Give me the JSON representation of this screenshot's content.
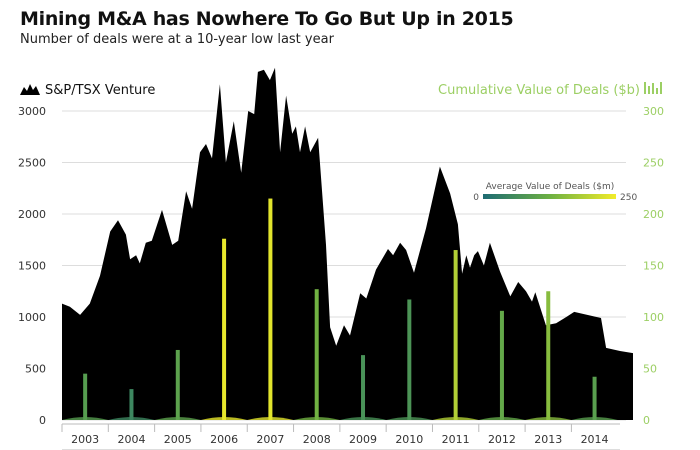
{
  "title": "Mining M&A has Nowhere To Go But Up in 2015",
  "subtitle": "Number of deals were at a 10-year low last year",
  "chart_data": {
    "type": "area+bar",
    "left_series": {
      "name": "S&P/TSX Venture",
      "type": "area",
      "color": "#000000",
      "ylim": [
        0,
        3000
      ],
      "yticks": [
        "0",
        "500",
        "1000",
        "1500",
        "2000",
        "2500",
        "3000"
      ],
      "points": [
        [
          2003.0,
          1130
        ],
        [
          2003.17,
          1100
        ],
        [
          2003.39,
          1020
        ],
        [
          2003.6,
          1130
        ],
        [
          2003.82,
          1400
        ],
        [
          2004.04,
          1830
        ],
        [
          2004.21,
          1940
        ],
        [
          2004.38,
          1800
        ],
        [
          2004.47,
          1560
        ],
        [
          2004.6,
          1600
        ],
        [
          2004.68,
          1520
        ],
        [
          2004.81,
          1720
        ],
        [
          2004.94,
          1740
        ],
        [
          2005.16,
          2040
        ],
        [
          2005.38,
          1700
        ],
        [
          2005.51,
          1740
        ],
        [
          2005.68,
          2220
        ],
        [
          2005.81,
          2050
        ],
        [
          2005.98,
          2600
        ],
        [
          2006.11,
          2680
        ],
        [
          2006.24,
          2540
        ],
        [
          2006.41,
          3260
        ],
        [
          2006.54,
          2500
        ],
        [
          2006.71,
          2900
        ],
        [
          2006.87,
          2400
        ],
        [
          2007.02,
          3000
        ],
        [
          2007.15,
          2970
        ],
        [
          2007.23,
          3380
        ],
        [
          2007.36,
          3400
        ],
        [
          2007.49,
          3300
        ],
        [
          2007.6,
          3420
        ],
        [
          2007.71,
          2600
        ],
        [
          2007.84,
          3150
        ],
        [
          2007.97,
          2780
        ],
        [
          2008.05,
          2850
        ],
        [
          2008.14,
          2600
        ],
        [
          2008.25,
          2850
        ],
        [
          2008.36,
          2600
        ],
        [
          2008.53,
          2740
        ],
        [
          2008.7,
          1700
        ],
        [
          2008.79,
          900
        ],
        [
          2008.92,
          720
        ],
        [
          2009.09,
          920
        ],
        [
          2009.22,
          820
        ],
        [
          2009.44,
          1230
        ],
        [
          2009.57,
          1180
        ],
        [
          2009.78,
          1460
        ],
        [
          2010.04,
          1660
        ],
        [
          2010.15,
          1600
        ],
        [
          2010.3,
          1720
        ],
        [
          2010.43,
          1650
        ],
        [
          2010.6,
          1430
        ],
        [
          2010.86,
          1860
        ],
        [
          2011.16,
          2460
        ],
        [
          2011.38,
          2200
        ],
        [
          2011.55,
          1900
        ],
        [
          2011.64,
          1420
        ],
        [
          2011.73,
          1600
        ],
        [
          2011.81,
          1480
        ],
        [
          2011.9,
          1600
        ],
        [
          2011.98,
          1640
        ],
        [
          2012.11,
          1500
        ],
        [
          2012.24,
          1720
        ],
        [
          2012.46,
          1440
        ],
        [
          2012.68,
          1200
        ],
        [
          2012.85,
          1340
        ],
        [
          2013.02,
          1250
        ],
        [
          2013.15,
          1150
        ],
        [
          2013.22,
          1240
        ],
        [
          2013.45,
          920
        ],
        [
          2013.67,
          940
        ],
        [
          2013.89,
          1000
        ],
        [
          2014.06,
          1050
        ],
        [
          2014.45,
          1010
        ],
        [
          2014.64,
          990
        ],
        [
          2014.75,
          700
        ],
        [
          2015.05,
          670
        ],
        [
          2015.33,
          650
        ]
      ]
    },
    "right_series": {
      "name": "Cumulative Value of Deals ($b)",
      "type": "bar",
      "color": "#9ccf64",
      "ylim": [
        0,
        300
      ],
      "yticks": [
        "0",
        "50",
        "100",
        "150",
        "200",
        "250",
        "300"
      ],
      "categories": [
        "2003",
        "2004",
        "2005",
        "2006",
        "2007",
        "2008",
        "2009",
        "2010",
        "2011",
        "2012",
        "2013",
        "2014"
      ],
      "values": [
        45,
        30,
        68,
        176,
        215,
        127,
        63,
        117,
        165,
        106,
        125,
        42
      ],
      "avg_value_m": [
        90,
        50,
        100,
        240,
        235,
        130,
        70,
        75,
        190,
        110,
        150,
        95
      ]
    },
    "color_scale": {
      "title": "Average Value of Deals ($m)",
      "min_label": "0",
      "max_label": "250",
      "colors": [
        "#1d6b73",
        "#6cb043",
        "#f2ec2a"
      ]
    },
    "xlim": [
      2003,
      2015.33
    ],
    "grid": true
  }
}
